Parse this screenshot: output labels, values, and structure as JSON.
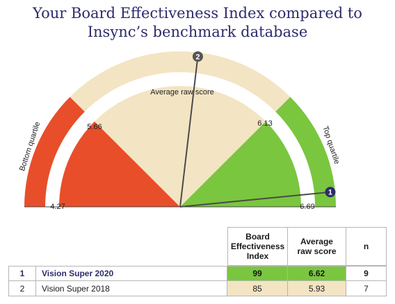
{
  "title_lines": [
    "Your Board Effectiveness Index compared to",
    "Insync’s benchmark database"
  ],
  "chart_data": {
    "type": "gauge",
    "scale": {
      "min": 4.27,
      "max": 6.69
    },
    "quartile_labels": {
      "bottom": "Bottom quartile",
      "top": "Top quartile"
    },
    "center_label": "Average raw score",
    "tick_labels": [
      {
        "value": 4.27,
        "label": "4.27"
      },
      {
        "value": 5.66,
        "label": "5.66"
      },
      {
        "value": 6.13,
        "label": "6.13"
      },
      {
        "value": 6.69,
        "label": "6.69"
      }
    ],
    "bands": [
      {
        "from": 4.27,
        "to": 5.66,
        "color": "#e84e2a"
      },
      {
        "from": 5.66,
        "to": 6.13,
        "color": "#f3e4c3"
      },
      {
        "from": 6.13,
        "to": 6.69,
        "color": "#7ac63f"
      }
    ],
    "needles": [
      {
        "marker": "1",
        "value": 6.62
      },
      {
        "marker": "2",
        "value": 5.93
      }
    ]
  },
  "table": {
    "headers": [
      "Board Effectiveness Index",
      "Average raw score",
      "n"
    ],
    "rows": [
      {
        "num": "1",
        "name": "Vision Super 2020",
        "index": "99",
        "raw": "6.62",
        "n": "9",
        "highlight": "#7ac63f"
      },
      {
        "num": "2",
        "name": "Vision Super 2018",
        "index": "85",
        "raw": "5.93",
        "n": "7",
        "highlight": "#f3e4c3"
      }
    ]
  },
  "colors": {
    "navy": "#2e2b6b",
    "needle": "#4a4a4a",
    "grid": "#b5b5b5"
  }
}
